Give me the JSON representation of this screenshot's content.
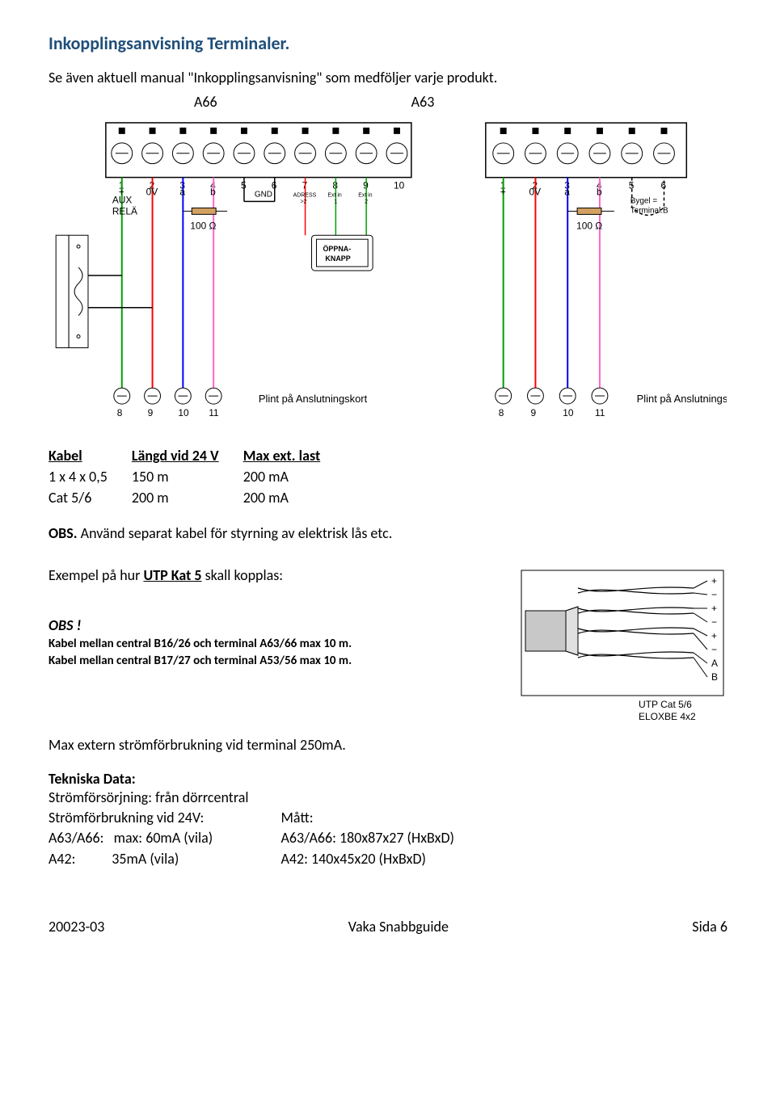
{
  "title": "Inkopplingsanvisning Terminaler.",
  "subtitle": "Se även aktuell manual \"Inkopplingsanvisning\" som medföljer varje produkt.",
  "diagram_labels": {
    "a66": "A66",
    "a63": "A63"
  },
  "a66": {
    "top_pins": [
      "1",
      "2",
      "3",
      "4",
      "5",
      "6",
      "7",
      "8",
      "9",
      "10"
    ],
    "pin_labels": {
      "p1_2": [
        "+",
        "0V"
      ],
      "p3_4": [
        "a",
        "b"
      ],
      "p5": "",
      "p6": "GND",
      "p7": "ADRESS >2",
      "p8": "Ext in 1",
      "p9": "Ext in 2"
    },
    "aux": "AUX RELÄ",
    "resistor": "100 Ω",
    "button_box": "ÖPPNA-KNAPP",
    "bottom_pins": [
      "8",
      "9",
      "10",
      "11"
    ],
    "bottom_label": "Plint på Anslutningskort",
    "colors": {
      "line_green": "#00a000",
      "line_red": "#ff0000",
      "line_blue": "#0000ff",
      "line_pink": "#ff66cc",
      "line_black": "#000000"
    }
  },
  "a63": {
    "top_pins": [
      "1",
      "2",
      "3",
      "4",
      "5",
      "6"
    ],
    "pin_labels": {
      "p1_2": [
        "+",
        "0V"
      ],
      "p3_4": [
        "a",
        "b"
      ]
    },
    "resistor": "100 Ω",
    "bygel": "Bygel = Terminal.B",
    "bottom_pins": [
      "8",
      "9",
      "10",
      "11"
    ],
    "bottom_label": "Plint på Anslutningskort",
    "colors": {
      "line_green": "#00a000",
      "line_red": "#ff0000",
      "line_blue": "#0000ff",
      "line_pink": "#ff66cc"
    }
  },
  "cable_table": {
    "headers": [
      "Kabel",
      "Längd vid 24 V",
      "Max ext. last"
    ],
    "rows": [
      [
        "1 x 4 x 0,5",
        "150 m",
        "200 mA"
      ],
      [
        "Cat 5/6",
        "200 m",
        "200 mA"
      ]
    ]
  },
  "obs_separate": "OBS. Använd separat kabel för styrning av elektrisk lås etc.",
  "utp": {
    "heading": "Exempel på hur UTP Kat 5 skall kopplas:",
    "obs": "OBS !",
    "note1": "Kabel mellan central B16/26 och terminal A63/66 max 10 m.",
    "note2": "Kabel mellan central B17/27 och terminal A53/56 max 10 m.",
    "diagram": {
      "pair_labels": [
        "+",
        "−",
        "+",
        "−",
        "+",
        "−",
        "A",
        "B"
      ],
      "cable_labels": [
        "UTP Cat 5/6",
        "ELQXBE 4x2"
      ],
      "colors": {
        "sheath": "#b0b0b0",
        "wire": "#000000"
      }
    }
  },
  "max_ext": "Max extern strömförbrukning vid terminal 250mA.",
  "tech": {
    "heading": "Tekniska Data:",
    "col1": [
      "Strömförsörjning: från dörrcentral",
      "Strömförbrukning vid 24V:",
      "A63/A66:   max: 60mA (vila)",
      "A42:           35mA (vila)"
    ],
    "col2_heading": "Mått:",
    "col2": [
      "A63/A66: 180x87x27 (HxBxD)",
      "A42: 140x45x20 (HxBxD)"
    ]
  },
  "footer": {
    "left": "20023-03",
    "center": "Vaka Snabbguide",
    "right": "Sida 6"
  }
}
